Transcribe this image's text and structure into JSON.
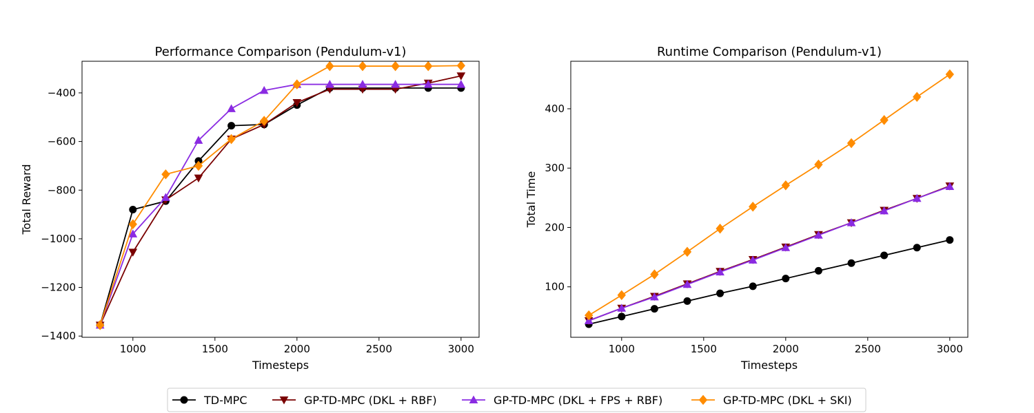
{
  "series_styles": [
    {
      "name": "TD-MPC",
      "color": "#000000",
      "marker": "circle"
    },
    {
      "name": "GP-TD-MPC (DKL + RBF)",
      "color": "#7a0000",
      "marker": "triangle-down"
    },
    {
      "name": "GP-TD-MPC (DKL + FPS + RBF)",
      "color": "#8a2be2",
      "marker": "triangle-up"
    },
    {
      "name": "GP-TD-MPC (DKL + SKI)",
      "color": "#ff8c00",
      "marker": "diamond"
    }
  ],
  "chart_data": [
    {
      "type": "line",
      "title": "Performance Comparison (Pendulum-v1)",
      "xlabel": "Timesteps",
      "ylabel": "Total Reward",
      "xlim": [
        690,
        3110
      ],
      "ylim": [
        -1405,
        -270
      ],
      "xticks": [
        1000,
        1500,
        2000,
        2500,
        3000
      ],
      "yticks": [
        -1400,
        -1200,
        -1000,
        -800,
        -600,
        -400
      ],
      "ytick_labels": [
        "−1400",
        "−1200",
        "−1000",
        "−800",
        "−600",
        "−400"
      ],
      "grid": false,
      "x": [
        800,
        1000,
        1200,
        1400,
        1600,
        1800,
        2000,
        2200,
        2400,
        2600,
        2800,
        3000
      ],
      "series": [
        {
          "name": "TD-MPC",
          "values": [
            -1355,
            -880,
            -845,
            -680,
            -535,
            -530,
            -450,
            -380,
            -380,
            -380,
            -380,
            -380
          ]
        },
        {
          "name": "GP-TD-MPC (DKL + RBF)",
          "values": [
            -1355,
            -1055,
            -840,
            -750,
            -590,
            -530,
            -440,
            -385,
            -385,
            -385,
            -360,
            -330
          ]
        },
        {
          "name": "GP-TD-MPC (DKL + FPS + RBF)",
          "values": [
            -1355,
            -980,
            -830,
            -595,
            -465,
            -390,
            -365,
            -365,
            -365,
            -365,
            -365,
            -365
          ]
        },
        {
          "name": "GP-TD-MPC (DKL + SKI)",
          "values": [
            -1355,
            -940,
            -735,
            -700,
            -590,
            -515,
            -365,
            -290,
            -290,
            -290,
            -290,
            -288
          ]
        }
      ]
    },
    {
      "type": "line",
      "title": "Runtime Comparison (Pendulum-v1)",
      "xlabel": "Timesteps",
      "ylabel": "Total Time",
      "xlim": [
        690,
        3110
      ],
      "ylim": [
        15,
        480
      ],
      "xticks": [
        1000,
        1500,
        2000,
        2500,
        3000
      ],
      "yticks": [
        100,
        200,
        300,
        400
      ],
      "ytick_labels": [
        "100",
        "200",
        "300",
        "400"
      ],
      "grid": false,
      "x": [
        800,
        1000,
        1200,
        1400,
        1600,
        1800,
        2000,
        2200,
        2400,
        2600,
        2800,
        3000
      ],
      "series": [
        {
          "name": "TD-MPC",
          "values": [
            37,
            50,
            63,
            76,
            89,
            101,
            114,
            127,
            140,
            153,
            166,
            179
          ]
        },
        {
          "name": "GP-TD-MPC (DKL + RBF)",
          "values": [
            43,
            64,
            84,
            105,
            126,
            146,
            167,
            188,
            208,
            229,
            249,
            270
          ]
        },
        {
          "name": "GP-TD-MPC (DKL + FPS + RBF)",
          "values": [
            43,
            64,
            83,
            104,
            125,
            145,
            166,
            187,
            208,
            228,
            249,
            269
          ]
        },
        {
          "name": "GP-TD-MPC (DKL + SKI)",
          "values": [
            52,
            86,
            121,
            159,
            198,
            235,
            271,
            306,
            342,
            381,
            420,
            458
          ]
        }
      ]
    }
  ],
  "legend": {
    "placement": "bottom-center",
    "labels": [
      "TD-MPC",
      "GP-TD-MPC (DKL + RBF)",
      "GP-TD-MPC (DKL + FPS + RBF)",
      "GP-TD-MPC (DKL + SKI)"
    ]
  }
}
